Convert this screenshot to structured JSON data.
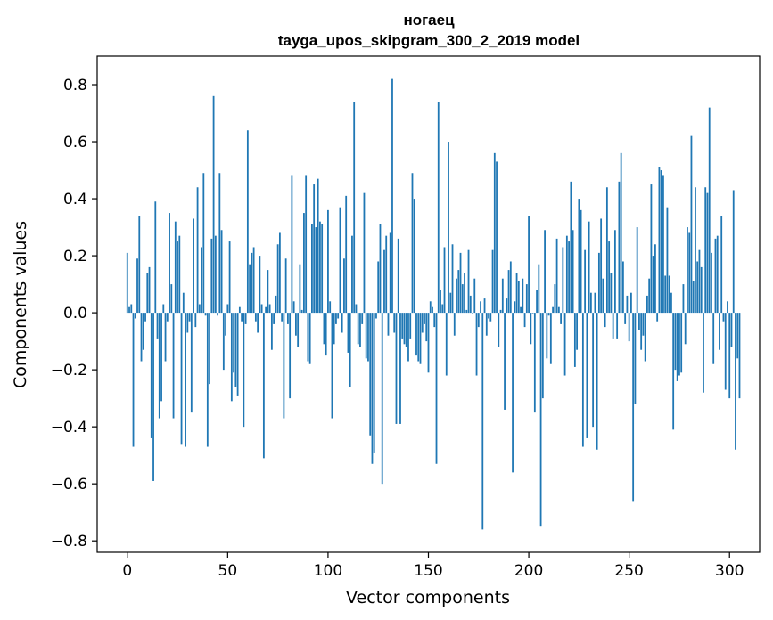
{
  "chart_data": {
    "type": "bar",
    "title": "ногаец",
    "subtitle": "tayga_upos_skipgram_300_2_2019 model",
    "xlabel": "Vector components",
    "ylabel": "Components values",
    "xlim": [
      -15,
      315
    ],
    "ylim": [
      -0.84,
      0.9
    ],
    "xticks": [
      0,
      50,
      100,
      150,
      200,
      250,
      300
    ],
    "yticks": [
      -0.8,
      -0.6,
      -0.4,
      -0.2,
      0.0,
      0.2,
      0.4,
      0.6,
      0.8
    ],
    "ytick_labels": [
      "−0.8",
      "−0.6",
      "−0.4",
      "−0.2",
      "0.0",
      "0.2",
      "0.4",
      "0.6",
      "0.8"
    ],
    "grid": false,
    "legend": "none",
    "bar_color": "#1f77b4",
    "values": [
      0.21,
      0.02,
      0.03,
      -0.47,
      -0.02,
      0.19,
      0.34,
      -0.17,
      -0.13,
      -0.03,
      0.14,
      0.16,
      -0.44,
      -0.59,
      0.39,
      -0.09,
      -0.37,
      -0.31,
      0.03,
      -0.17,
      -0.03,
      0.35,
      0.1,
      -0.37,
      0.32,
      0.25,
      0.27,
      -0.46,
      0.07,
      -0.47,
      -0.07,
      -0.03,
      -0.35,
      0.33,
      -0.05,
      0.44,
      0.03,
      0.23,
      0.49,
      -0.01,
      -0.47,
      -0.25,
      0.26,
      0.76,
      0.27,
      -0.01,
      0.49,
      0.29,
      -0.2,
      -0.08,
      0.03,
      0.25,
      -0.31,
      -0.21,
      -0.26,
      -0.29,
      0.02,
      -0.03,
      -0.4,
      -0.04,
      0.64,
      0.17,
      0.21,
      0.23,
      -0.03,
      -0.07,
      0.2,
      0.03,
      -0.51,
      0.02,
      0.15,
      0.03,
      -0.13,
      -0.04,
      0.06,
      0.24,
      0.28,
      -0.03,
      -0.37,
      0.19,
      -0.04,
      -0.3,
      0.48,
      0.04,
      -0.08,
      -0.12,
      0.17,
      0.01,
      0.35,
      0.48,
      -0.17,
      -0.18,
      0.31,
      0.45,
      0.3,
      0.47,
      0.32,
      0.31,
      -0.11,
      -0.15,
      0.36,
      0.04,
      -0.37,
      -0.11,
      -0.04,
      -0.02,
      0.37,
      -0.07,
      0.19,
      0.41,
      -0.14,
      -0.26,
      0.27,
      0.74,
      0.03,
      -0.11,
      -0.12,
      -0.04,
      0.42,
      -0.16,
      -0.17,
      -0.43,
      -0.53,
      -0.49,
      -0.02,
      0.18,
      0.31,
      -0.6,
      0.22,
      0.27,
      -0.08,
      0.28,
      0.82,
      -0.07,
      -0.39,
      0.26,
      -0.39,
      -0.09,
      -0.11,
      -0.12,
      -0.17,
      -0.09,
      0.49,
      0.4,
      -0.15,
      -0.17,
      -0.18,
      -0.07,
      -0.04,
      -0.1,
      -0.21,
      0.04,
      0.02,
      -0.05,
      -0.53,
      0.74,
      0.08,
      0.03,
      0.23,
      -0.22,
      0.6,
      0.07,
      0.24,
      -0.08,
      0.12,
      0.15,
      0.21,
      0.1,
      0.14,
      0.01,
      0.22,
      0.06,
      0.0,
      0.12,
      -0.22,
      -0.05,
      0.04,
      -0.76,
      0.05,
      -0.08,
      -0.02,
      -0.03,
      0.22,
      0.56,
      0.53,
      -0.12,
      0.01,
      0.12,
      -0.34,
      0.05,
      0.15,
      0.18,
      -0.56,
      0.04,
      0.14,
      0.11,
      0.02,
      0.12,
      -0.05,
      0.1,
      0.34,
      -0.11,
      0.0,
      -0.35,
      0.08,
      0.17,
      -0.75,
      -0.3,
      0.29,
      -0.16,
      -0.01,
      -0.18,
      0.02,
      0.1,
      0.26,
      0.02,
      -0.04,
      0.23,
      -0.22,
      0.27,
      0.25,
      0.46,
      0.29,
      -0.19,
      -0.13,
      0.4,
      0.36,
      -0.47,
      0.22,
      -0.44,
      0.32,
      0.07,
      -0.4,
      0.07,
      -0.48,
      0.21,
      0.33,
      0.12,
      -0.05,
      0.44,
      0.25,
      0.14,
      -0.09,
      0.29,
      -0.09,
      0.46,
      0.56,
      0.18,
      -0.04,
      0.06,
      -0.1,
      0.07,
      -0.66,
      -0.32,
      0.3,
      -0.06,
      -0.13,
      -0.08,
      -0.17,
      0.06,
      0.12,
      0.45,
      0.2,
      0.24,
      -0.03,
      0.51,
      0.5,
      0.48,
      0.13,
      0.37,
      0.13,
      0.07,
      -0.41,
      -0.2,
      -0.24,
      -0.22,
      -0.21,
      0.1,
      -0.11,
      0.3,
      0.28,
      0.62,
      0.11,
      0.44,
      0.18,
      0.22,
      0.16,
      -0.28,
      0.44,
      0.42,
      0.72,
      0.21,
      -0.18,
      0.26,
      0.27,
      -0.13,
      0.34,
      -0.03,
      -0.27,
      0.04,
      -0.3,
      -0.12,
      0.43,
      -0.48,
      -0.16,
      -0.3
    ]
  }
}
